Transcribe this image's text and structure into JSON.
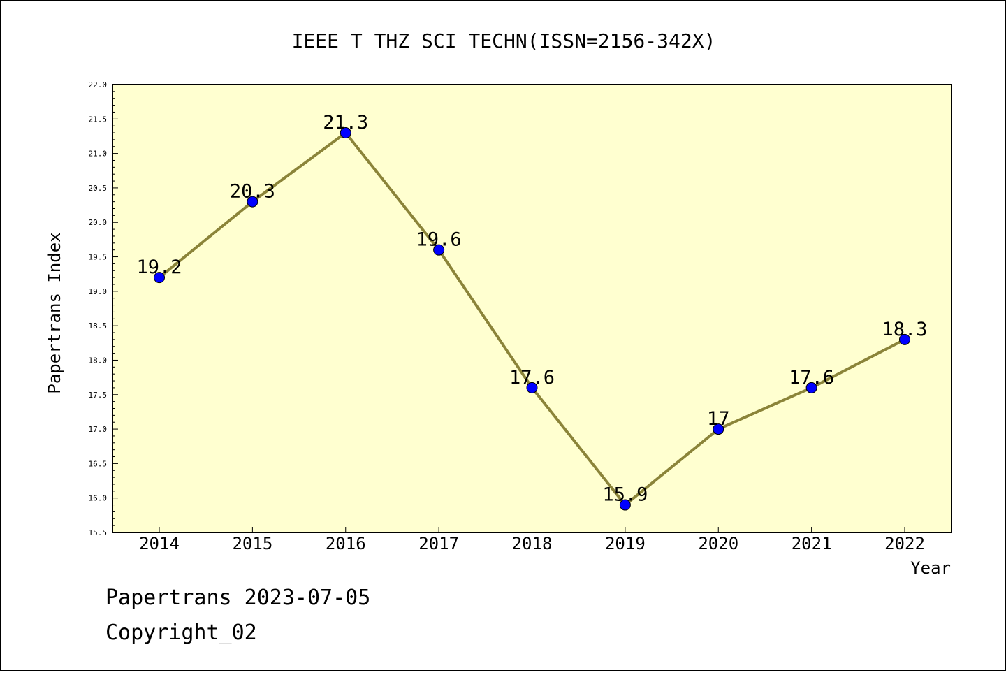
{
  "chart_data": {
    "type": "line",
    "title": "IEEE T THZ SCI TECHN(ISSN=2156-342X)",
    "xlabel": "Year",
    "ylabel": "Papertrans Index",
    "categories": [
      "2014",
      "2015",
      "2016",
      "2017",
      "2018",
      "2019",
      "2020",
      "2021",
      "2022"
    ],
    "series": [
      {
        "values": [
          19.2,
          20.3,
          21.3,
          19.6,
          17.6,
          15.9,
          17.0,
          17.6,
          18.3
        ],
        "labels": [
          "19.2",
          "20.3",
          "21.3",
          "19.6",
          "17.6",
          "15.9",
          "17",
          "17.6",
          "18.3"
        ]
      }
    ],
    "ylim": [
      15.5,
      22.0
    ],
    "yticks": [
      "15.5",
      "16.0",
      "16.5",
      "17.0",
      "17.5",
      "18.0",
      "18.5",
      "19.0",
      "19.5",
      "20.0",
      "20.5",
      "21.0",
      "21.5",
      "22.0"
    ],
    "grid": false,
    "colors": {
      "plot_background": "#ffffd0",
      "line": "#8b8439",
      "marker": "#0000ff"
    }
  },
  "footer": {
    "line1": "Papertrans 2023-07-05",
    "line2": "Copyright_02"
  }
}
